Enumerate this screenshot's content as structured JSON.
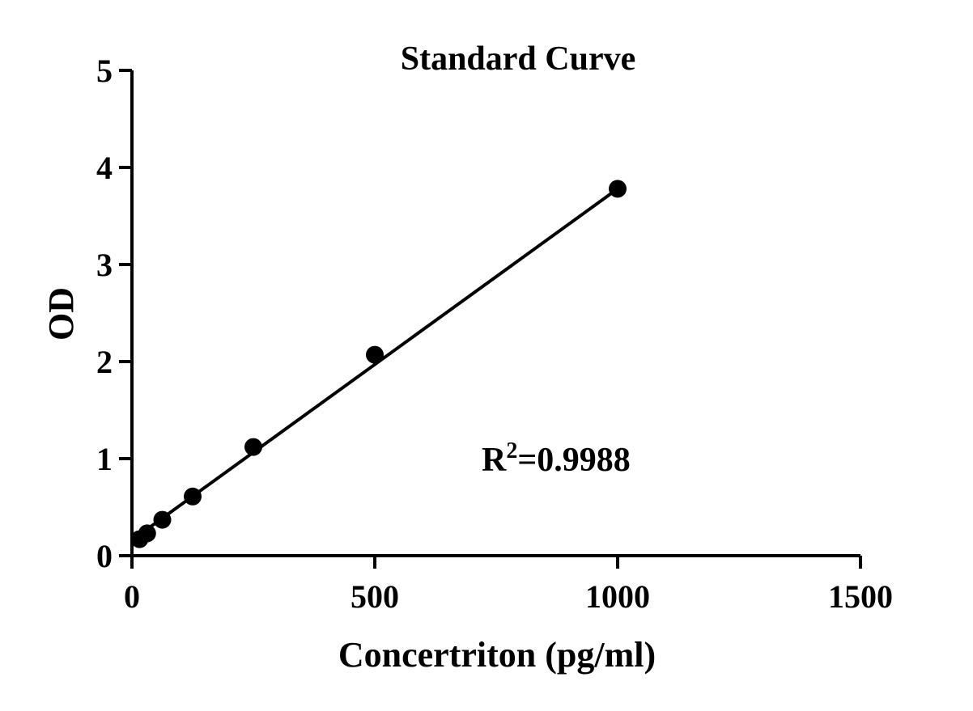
{
  "chart_data": {
    "type": "scatter",
    "title": "Standard Curve",
    "xlabel": "Concertriton (pg/ml)",
    "ylabel": "OD",
    "xlim": [
      0,
      1500
    ],
    "ylim": [
      0,
      5
    ],
    "x_ticks": [
      0,
      500,
      1000,
      1500
    ],
    "y_ticks": [
      0,
      1,
      2,
      3,
      4,
      5
    ],
    "grid": false,
    "series": [
      {
        "x": [
          15.6,
          31.25,
          62.5,
          125,
          250,
          500,
          1000
        ],
        "y": [
          0.17,
          0.23,
          0.37,
          0.61,
          1.12,
          2.07,
          3.78
        ]
      }
    ],
    "fit_line": {
      "x": [
        0,
        1000
      ],
      "y": [
        0.16,
        3.78
      ]
    },
    "annotation": {
      "base": "R",
      "superscript": "2",
      "text": "=0.9988"
    },
    "colors": {
      "marker": "#000000",
      "line": "#000000"
    }
  }
}
